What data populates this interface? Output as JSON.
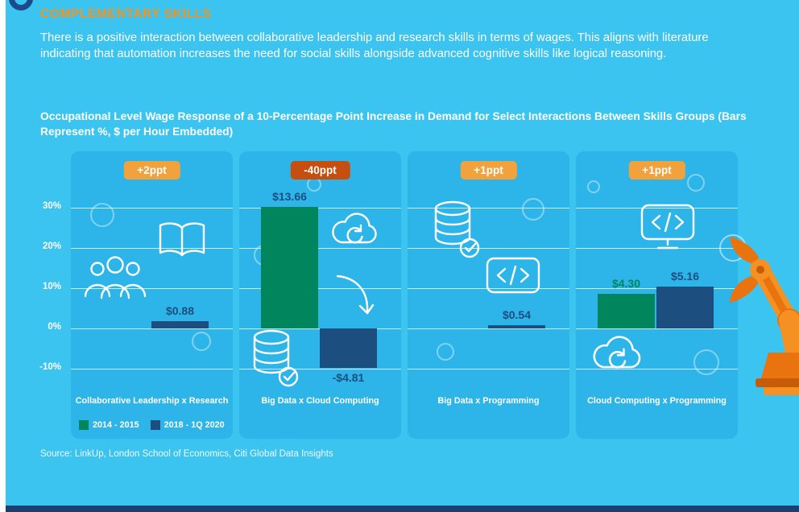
{
  "header": {
    "title": "COMPLEMENTARY SKILLS",
    "paragraph": "There is a positive interaction between collaborative leadership and research skills in terms of wages. This aligns with literature indicating that automation increases the need for social skills alongside advanced cognitive skills like logical reasoning."
  },
  "chart_data": {
    "type": "bar",
    "title": "Occupational Level Wage Response of a 10-Percentage Point Increase in Demand for Select Interactions Between Skills Groups (Bars Represent %, $ per Hour Embedded)",
    "yticks": [
      "30%",
      "20%",
      "10%",
      "0%",
      "-10%"
    ],
    "ylim": [
      -14,
      36
    ],
    "grid": true,
    "legend_position": "bottom-left-first-panel",
    "categories": [
      "Collaborative Leadership x Research",
      "Big Data x Cloud Computing",
      "Big Data x Programming",
      "Cloud Computing x Programming"
    ],
    "series": [
      {
        "name": "2014 - 2015",
        "color": "#00855c",
        "values_pct": [
          null,
          30.2,
          null,
          8.6
        ],
        "values_usd_per_hour": [
          null,
          13.66,
          null,
          4.3
        ]
      },
      {
        "name": "2018 - 1Q 2020",
        "color": "#1d4e80",
        "values_pct": [
          1.8,
          -9.8,
          0.9,
          10.4
        ],
        "values_usd_per_hour": [
          0.88,
          -4.81,
          0.54,
          5.16
        ]
      }
    ],
    "legend": [
      {
        "label": "2014 - 2015",
        "color": "#00855c"
      },
      {
        "label": "2018 - 1Q 2020",
        "color": "#1d4e80"
      }
    ],
    "panels": [
      {
        "badge": "+2ppt",
        "badge_color": "#f2a23c",
        "category": "Collaborative Leadership x Research",
        "icons": [
          "team-icon",
          "open-book-icon"
        ],
        "bars": [
          {
            "series": "2018 - 1Q 2020",
            "pct": 1.8,
            "usd_label": "$0.88",
            "color": "#1d4e80",
            "label_color": "#1d4e80"
          }
        ]
      },
      {
        "badge": "-40ppt",
        "badge_color": "#c64e0e",
        "category": "Big Data x Cloud Computing",
        "icons": [
          "cloud-sync-icon",
          "curved-arrow-icon",
          "database-check-icon"
        ],
        "bars": [
          {
            "series": "2014 - 2015",
            "pct": 30.2,
            "usd_label": "$13.66",
            "color": "#00855c",
            "label_color": "#1d4e80"
          },
          {
            "series": "2018 - 1Q 2020",
            "pct": -9.8,
            "usd_label": "-$4.81",
            "color": "#1d4e80",
            "label_color": "#1d4e80"
          }
        ]
      },
      {
        "badge": "+1ppt",
        "badge_color": "#f2a23c",
        "category": "Big Data x Programming",
        "icons": [
          "database-check-icon",
          "code-icon"
        ],
        "bars": [
          {
            "series": "2018 - 1Q 2020",
            "pct": 0.9,
            "usd_label": "$0.54",
            "color": "#1d4e80",
            "label_color": "#1d4e80"
          }
        ]
      },
      {
        "badge": "+1ppt",
        "badge_color": "#f2a23c",
        "category": "Cloud Computing x Programming",
        "icons": [
          "code-monitor-icon",
          "cloud-sync-icon"
        ],
        "bars": [
          {
            "series": "2014 - 2015",
            "pct": 8.6,
            "usd_label": "$4.30",
            "color": "#00855c",
            "label_color": "#00855c"
          },
          {
            "series": "2018 - 1Q 2020",
            "pct": 10.4,
            "usd_label": "$5.16",
            "color": "#1d4e80",
            "label_color": "#1d4e80"
          }
        ]
      }
    ]
  },
  "source": "Source: LinkUp, London School of Economics, Citi Global Data Insights",
  "colors": {
    "background": "#3cc4f1",
    "panel": "#2db5e9",
    "heading": "#f6921e",
    "badge_orange": "#f2a23c",
    "badge_red_orange": "#c64e0e",
    "series_green": "#00855c",
    "series_navy": "#1d4e80",
    "footer_bar": "#1b3f71",
    "robot_orange": "#f59123"
  }
}
